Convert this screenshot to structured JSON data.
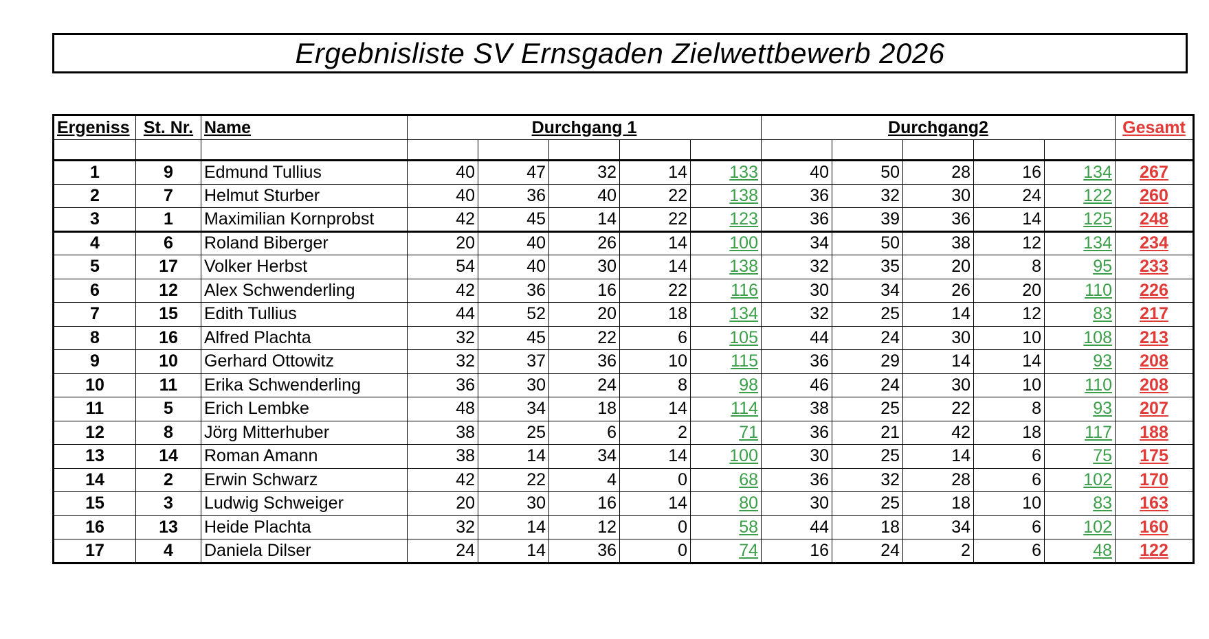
{
  "title": "Ergebnisliste SV Ernsgaden Zielwettbewerb 2026",
  "headers": {
    "rank": "Ergeniss",
    "stnr": "St. Nr.",
    "name": "Name",
    "round1": "Durchgang 1",
    "round2": "Durchgang2",
    "total": "Gesamt"
  },
  "colors": {
    "sum": "#3a9e48",
    "total": "#e23a37"
  },
  "rows": [
    {
      "rank": "1",
      "stnr": "9",
      "name": "Edmund Tullius",
      "r1": [
        "40",
        "47",
        "32",
        "14"
      ],
      "r1sum": "133",
      "r2": [
        "40",
        "50",
        "28",
        "16"
      ],
      "r2sum": "134",
      "total": "267"
    },
    {
      "rank": "2",
      "stnr": "7",
      "name": "Helmut Sturber",
      "r1": [
        "40",
        "36",
        "40",
        "22"
      ],
      "r1sum": "138",
      "r2": [
        "36",
        "32",
        "30",
        "24"
      ],
      "r2sum": "122",
      "total": "260"
    },
    {
      "rank": "3",
      "stnr": "1",
      "name": "Maximilian Kornprobst",
      "r1": [
        "42",
        "45",
        "14",
        "22"
      ],
      "r1sum": "123",
      "r2": [
        "36",
        "39",
        "36",
        "14"
      ],
      "r2sum": "125",
      "total": "248"
    },
    {
      "rank": "4",
      "stnr": "6",
      "name": "Roland Biberger",
      "r1": [
        "20",
        "40",
        "26",
        "14"
      ],
      "r1sum": "100",
      "r2": [
        "34",
        "50",
        "38",
        "12"
      ],
      "r2sum": "134",
      "total": "234"
    },
    {
      "rank": "5",
      "stnr": "17",
      "name": "Volker Herbst",
      "r1": [
        "54",
        "40",
        "30",
        "14"
      ],
      "r1sum": "138",
      "r2": [
        "32",
        "35",
        "20",
        "8"
      ],
      "r2sum": "95",
      "total": "233"
    },
    {
      "rank": "6",
      "stnr": "12",
      "name": "Alex Schwenderling",
      "r1": [
        "42",
        "36",
        "16",
        "22"
      ],
      "r1sum": "116",
      "r2": [
        "30",
        "34",
        "26",
        "20"
      ],
      "r2sum": "110",
      "total": "226"
    },
    {
      "rank": "7",
      "stnr": "15",
      "name": "Edith Tullius",
      "r1": [
        "44",
        "52",
        "20",
        "18"
      ],
      "r1sum": "134",
      "r2": [
        "32",
        "25",
        "14",
        "12"
      ],
      "r2sum": "83",
      "total": "217"
    },
    {
      "rank": "8",
      "stnr": "16",
      "name": "Alfred Plachta",
      "r1": [
        "32",
        "45",
        "22",
        "6"
      ],
      "r1sum": "105",
      "r2": [
        "44",
        "24",
        "30",
        "10"
      ],
      "r2sum": "108",
      "total": "213"
    },
    {
      "rank": "9",
      "stnr": "10",
      "name": "Gerhard Ottowitz",
      "r1": [
        "32",
        "37",
        "36",
        "10"
      ],
      "r1sum": "115",
      "r2": [
        "36",
        "29",
        "14",
        "14"
      ],
      "r2sum": "93",
      "total": "208"
    },
    {
      "rank": "10",
      "stnr": "11",
      "name": "Erika Schwenderling",
      "r1": [
        "36",
        "30",
        "24",
        "8"
      ],
      "r1sum": "98",
      "r2": [
        "46",
        "24",
        "30",
        "10"
      ],
      "r2sum": "110",
      "total": "208"
    },
    {
      "rank": "11",
      "stnr": "5",
      "name": "Erich Lembke",
      "r1": [
        "48",
        "34",
        "18",
        "14"
      ],
      "r1sum": "114",
      "r2": [
        "38",
        "25",
        "22",
        "8"
      ],
      "r2sum": "93",
      "total": "207"
    },
    {
      "rank": "12",
      "stnr": "8",
      "name": "Jörg Mitterhuber",
      "r1": [
        "38",
        "25",
        "6",
        "2"
      ],
      "r1sum": "71",
      "r2": [
        "36",
        "21",
        "42",
        "18"
      ],
      "r2sum": "117",
      "total": "188"
    },
    {
      "rank": "13",
      "stnr": "14",
      "name": "Roman Amann",
      "r1": [
        "38",
        "14",
        "34",
        "14"
      ],
      "r1sum": "100",
      "r2": [
        "30",
        "25",
        "14",
        "6"
      ],
      "r2sum": "75",
      "total": "175"
    },
    {
      "rank": "14",
      "stnr": "2",
      "name": "Erwin Schwarz",
      "r1": [
        "42",
        "22",
        "4",
        "0"
      ],
      "r1sum": "68",
      "r2": [
        "36",
        "32",
        "28",
        "6"
      ],
      "r2sum": "102",
      "total": "170"
    },
    {
      "rank": "15",
      "stnr": "3",
      "name": "Ludwig Schweiger",
      "r1": [
        "20",
        "30",
        "16",
        "14"
      ],
      "r1sum": "80",
      "r2": [
        "30",
        "25",
        "18",
        "10"
      ],
      "r2sum": "83",
      "total": "163"
    },
    {
      "rank": "16",
      "stnr": "13",
      "name": "Heide Plachta",
      "r1": [
        "32",
        "14",
        "12",
        "0"
      ],
      "r1sum": "58",
      "r2": [
        "44",
        "18",
        "34",
        "6"
      ],
      "r2sum": "102",
      "total": "160"
    },
    {
      "rank": "17",
      "stnr": "4",
      "name": "Daniela Dilser",
      "r1": [
        "24",
        "14",
        "36",
        "0"
      ],
      "r1sum": "74",
      "r2": [
        "16",
        "24",
        "2",
        "6"
      ],
      "r2sum": "48",
      "total": "122"
    }
  ]
}
